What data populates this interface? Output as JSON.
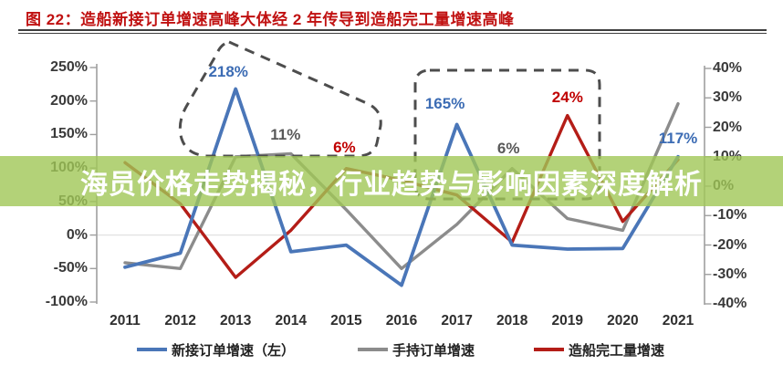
{
  "figure": {
    "title": "图 22：造船新接订单增速高峰大体经 2 年传导到造船完工量增速高峰",
    "title_color": "#c01111"
  },
  "overlay": {
    "text": "海员价格走势揭秘，行业趋势与影响因素深度解析",
    "bg_color": "rgba(160,199,86,0.8)",
    "text_color": "#ffffff"
  },
  "chart_data": {
    "type": "line",
    "x": [
      "2011",
      "2012",
      "2013",
      "2014",
      "2015",
      "2016",
      "2017",
      "2018",
      "2019",
      "2020",
      "2021"
    ],
    "series": [
      {
        "name": "新接订单增速（左）",
        "axis": "left",
        "color": "#4a76b8",
        "values": [
          -48,
          -27,
          218,
          -25,
          -15,
          -75,
          165,
          -15,
          -21,
          -20,
          117
        ]
      },
      {
        "name": "手持订单增速",
        "axis": "right",
        "color": "#8c8c8c",
        "values": [
          -26,
          -28,
          10,
          11,
          -8,
          -28,
          -13,
          6,
          -11,
          -15,
          28
        ]
      },
      {
        "name": "造船完工量增速",
        "axis": "right",
        "color": "#b41d17",
        "values": [
          8,
          -6,
          -31,
          -15,
          6,
          2,
          -3,
          -19,
          24,
          -12,
          9
        ]
      }
    ],
    "left_axis": {
      "tick_labels": [
        "250%",
        "200%",
        "150%",
        "100%",
        "50%",
        "0%",
        "-50%",
        "-100%"
      ],
      "tick_values": [
        250,
        200,
        150,
        100,
        50,
        0,
        -50,
        -100
      ],
      "min": -100,
      "max": 250
    },
    "right_axis": {
      "tick_labels": [
        "40%",
        "30%",
        "20%",
        "10%",
        "0%",
        "-10%",
        "-20%",
        "-30%",
        "-40%"
      ],
      "tick_values": [
        40,
        30,
        20,
        10,
        0,
        -10,
        -20,
        -30,
        -40
      ],
      "min": -40,
      "max": 40
    },
    "annotations": [
      {
        "text": "218%",
        "year": "2013",
        "series": 0,
        "color": "#3c6cb4"
      },
      {
        "text": "11%",
        "year": "2014",
        "series": 1,
        "color": "#595959"
      },
      {
        "text": "6%",
        "year": "2015",
        "series": 2,
        "color": "#c00000"
      },
      {
        "text": "165%",
        "year": "2017",
        "series": 0,
        "color": "#3c6cb4"
      },
      {
        "text": "6%",
        "year": "2018",
        "series": 1,
        "color": "#595959"
      },
      {
        "text": "24%",
        "year": "2019",
        "series": 2,
        "color": "#c00000"
      },
      {
        "text": "117%",
        "year": "2021",
        "series": 0,
        "color": "#3c6cb4"
      }
    ],
    "legend": [
      {
        "label": "新接订单增速（左）",
        "color": "#4a76b8"
      },
      {
        "label": "手持订单增速",
        "color": "#8c8c8c"
      },
      {
        "label": "造船完工量增速",
        "color": "#b41d17"
      }
    ],
    "grid": "zero-line-only",
    "legend_position": "bottom"
  }
}
